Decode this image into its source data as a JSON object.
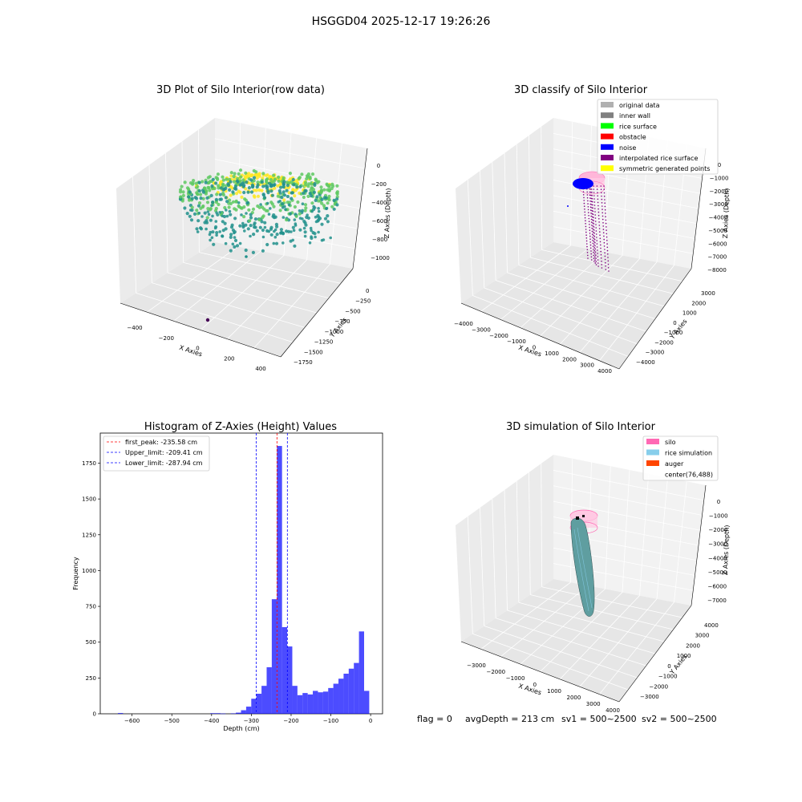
{
  "figure": {
    "suptitle": "HSGGD04 2025-12-17 19:26:26",
    "status": {
      "flag": "flag = 0",
      "avg_depth": "avgDepth = 213 cm",
      "sv1": "sv1 = 500~2500",
      "sv2": "sv2 = 500~2500"
    }
  },
  "panels": {
    "raw": {
      "title": "3D Plot of Silo Interior(row data)",
      "xlabel": "X Axies",
      "ylabel": "Y Axies",
      "zlabel": "Z Axies (Depth)",
      "x_ticks": [
        "−400",
        "−200",
        "0",
        "200",
        "400"
      ],
      "y_ticks": [
        "0",
        "−250",
        "−500",
        "−750",
        "−1000",
        "−1250",
        "−1500",
        "−1750"
      ],
      "z_ticks": [
        "0",
        "−200",
        "−400",
        "−600",
        "−800",
        "−1000"
      ],
      "colormap": [
        "#440154",
        "#21918c",
        "#5ec962",
        "#fde725"
      ]
    },
    "classify": {
      "title": "3D classify of Silo Interior",
      "xlabel": "X Axies",
      "ylabel": "Y Axies",
      "zlabel": "Z Axies (Depth)",
      "x_ticks": [
        "−4000",
        "−3000",
        "−2000",
        "−1000",
        "0",
        "1000",
        "2000",
        "3000",
        "4000"
      ],
      "y_ticks": [
        "3000",
        "2000",
        "1000",
        "0",
        "−1000",
        "−2000",
        "−3000",
        "−4000"
      ],
      "z_ticks": [
        "0",
        "−1000",
        "−2000",
        "−3000",
        "−4000",
        "−5000",
        "−6000",
        "−7000",
        "−8000"
      ],
      "legend": [
        {
          "label": "original data",
          "color": "#b0b0b0"
        },
        {
          "label": "inner wall",
          "color": "#808080"
        },
        {
          "label": "rice surface",
          "color": "#00ff00"
        },
        {
          "label": "obstacle",
          "color": "#ff0000"
        },
        {
          "label": "noise",
          "color": "#0000ff"
        },
        {
          "label": "interpolated rice surface",
          "color": "#800080"
        },
        {
          "label": "symmetric generated points",
          "color": "#ffff00"
        }
      ]
    },
    "simulation": {
      "title": "3D simulation of Silo Interior",
      "xlabel": "X Axies",
      "ylabel": "Y Axies",
      "zlabel": "Z Axies (Depth)",
      "x_ticks": [
        "−3000",
        "−2000",
        "−1000",
        "0",
        "1000",
        "2000",
        "3000",
        "4000"
      ],
      "y_ticks": [
        "4000",
        "3000",
        "2000",
        "1000",
        "0",
        "−1000",
        "−2000",
        "−3000"
      ],
      "z_ticks": [
        "0",
        "−1000",
        "−2000",
        "−3000",
        "−4000",
        "−5000",
        "−6000",
        "−7000"
      ],
      "legend": [
        {
          "label": "silo",
          "color": "#ff69b4"
        },
        {
          "label": "rice simulation",
          "color": "#87ceeb"
        },
        {
          "label": "auger",
          "color": "#ff4500"
        },
        {
          "label": "center(76,488)",
          "color": ""
        }
      ]
    }
  },
  "chart_data": {
    "type": "bar",
    "title": "Histogram of Z-Axies (Height) Values",
    "xlabel": "Depth (cm)",
    "ylabel": "Frequency",
    "xlim": [
      -680,
      30
    ],
    "ylim": [
      0,
      1960
    ],
    "x_ticks": [
      -600,
      -500,
      -400,
      -300,
      -200,
      -100,
      0
    ],
    "y_ticks": [
      0,
      250,
      500,
      750,
      1000,
      1250,
      1500,
      1750
    ],
    "bar_color": "#0000ff",
    "bin_width": 12.9,
    "bins": [
      {
        "x0": -635.6,
        "value": 5
      },
      {
        "x0": -403.4,
        "value": 4
      },
      {
        "x0": -390.5,
        "value": 4
      },
      {
        "x0": -377.6,
        "value": 2
      },
      {
        "x0": -351.8,
        "value": 3
      },
      {
        "x0": -338.9,
        "value": 8
      },
      {
        "x0": -326.0,
        "value": 25
      },
      {
        "x0": -313.1,
        "value": 50
      },
      {
        "x0": -300.2,
        "value": 105
      },
      {
        "x0": -287.3,
        "value": 140
      },
      {
        "x0": -274.4,
        "value": 195
      },
      {
        "x0": -261.5,
        "value": 325
      },
      {
        "x0": -248.6,
        "value": 800
      },
      {
        "x0": -235.7,
        "value": 1870
      },
      {
        "x0": -222.8,
        "value": 605
      },
      {
        "x0": -209.9,
        "value": 470
      },
      {
        "x0": -197.0,
        "value": 195
      },
      {
        "x0": -184.1,
        "value": 130
      },
      {
        "x0": -171.2,
        "value": 145
      },
      {
        "x0": -158.3,
        "value": 135
      },
      {
        "x0": -145.4,
        "value": 160
      },
      {
        "x0": -132.5,
        "value": 150
      },
      {
        "x0": -119.6,
        "value": 155
      },
      {
        "x0": -106.7,
        "value": 180
      },
      {
        "x0": -93.8,
        "value": 210
      },
      {
        "x0": -80.9,
        "value": 245
      },
      {
        "x0": -68.0,
        "value": 280
      },
      {
        "x0": -55.1,
        "value": 315
      },
      {
        "x0": -42.2,
        "value": 355
      },
      {
        "x0": -29.3,
        "value": 575
      },
      {
        "x0": -16.4,
        "value": 160
      }
    ],
    "vlines": [
      {
        "label": "first_peak: -235.58 cm",
        "x": -235.58,
        "color": "#ff0000"
      },
      {
        "label": "Upper_limit: -209.41 cm",
        "x": -209.41,
        "color": "#0000ff"
      },
      {
        "label": "Lower_limit: -287.94 cm",
        "x": -287.94,
        "color": "#0000ff"
      }
    ],
    "legend_loc": "upper left"
  }
}
